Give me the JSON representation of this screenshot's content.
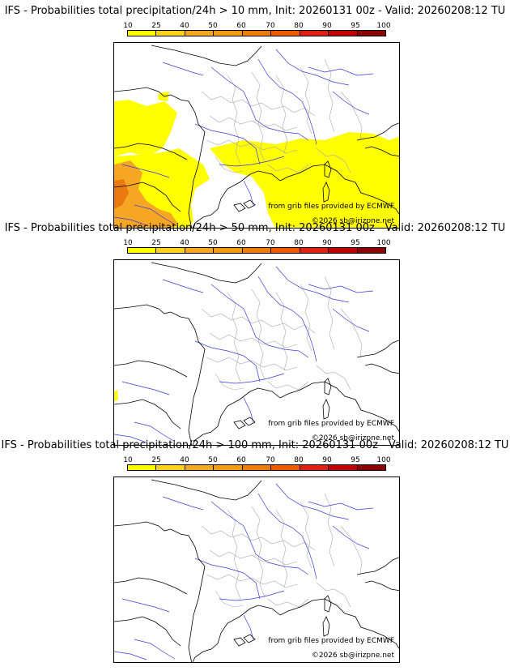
{
  "colorbar": {
    "ticks": [
      "10",
      "25",
      "40",
      "50",
      "60",
      "70",
      "80",
      "90",
      "95",
      "100"
    ],
    "colors": [
      "#ffff00",
      "#ffd21e",
      "#f5a623",
      "#f39c12",
      "#f07c0a",
      "#ee5a00",
      "#e02010",
      "#c00000",
      "#8b0000"
    ]
  },
  "credit": {
    "source": "from grib files provided by ECMWF",
    "copyright": "©2026 sb@irizpne.net"
  },
  "panels": [
    {
      "title": "IFS - Probabilities total precipitation/24h > 10 mm, Init: 20260131 00z - Valid: 20260208:12 TU",
      "threshold_mm": 10
    },
    {
      "title": "IFS - Probabilities total precipitation/24h > 50 mm, Init: 20260131 00z - Valid: 20260208:12 TU",
      "threshold_mm": 50
    },
    {
      "title": "IFS - Probabilities total precipitation/24h > 100 mm, Init: 20260131 00z - Valid: 20260208:12 TU",
      "threshold_mm": 100
    }
  ],
  "style": {
    "coast": "#000000",
    "rivers": "#3a3ad8",
    "borders": "#aaaaaa",
    "frame": "#000000"
  }
}
